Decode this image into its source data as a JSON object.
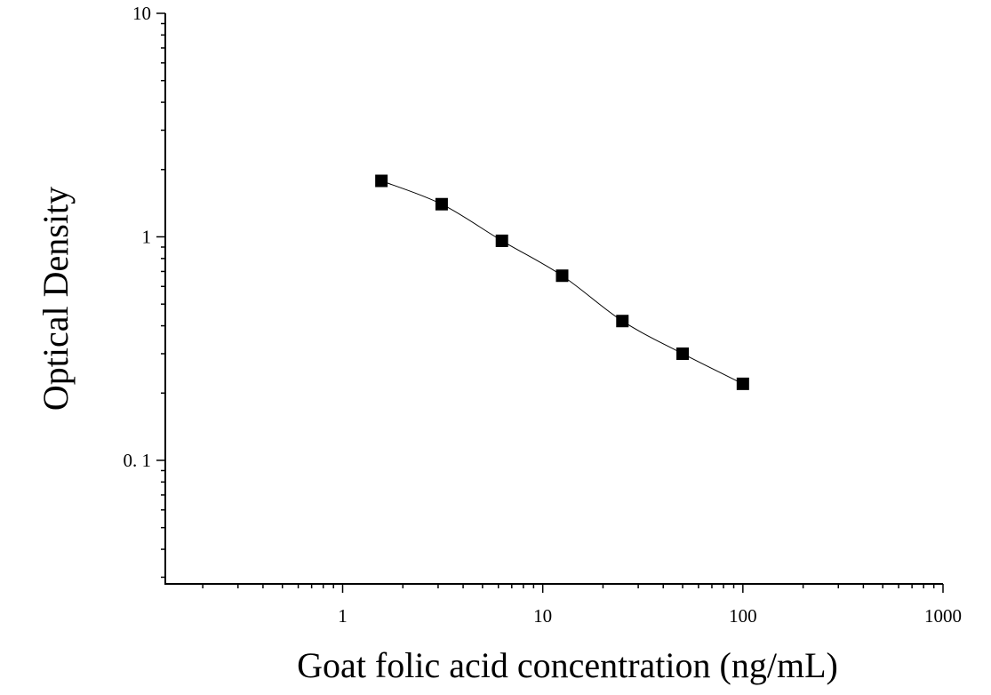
{
  "chart_data": {
    "type": "scatter",
    "title": "",
    "xlabel": "Goat folic acid concentration (ng/mL)",
    "ylabel": "Optical Density",
    "x_scale": "log",
    "y_scale": "log",
    "xlim": [
      0.13,
      1000
    ],
    "ylim": [
      0.028,
      10
    ],
    "x_ticks": [
      {
        "value": 1,
        "label": "1"
      },
      {
        "value": 10,
        "label": "10"
      },
      {
        "value": 100,
        "label": "100"
      },
      {
        "value": 1000,
        "label": "1000"
      }
    ],
    "y_ticks": [
      {
        "value": 10,
        "label": "10"
      },
      {
        "value": 1,
        "label": "1"
      },
      {
        "value": 0.1,
        "label": "0. 1"
      }
    ],
    "grid": false,
    "legend": "none",
    "series": [
      {
        "marker": "square",
        "color": "#000000",
        "fit_curve": true,
        "points": [
          {
            "x": 1.5625,
            "y": 1.78
          },
          {
            "x": 3.125,
            "y": 1.4
          },
          {
            "x": 6.25,
            "y": 0.96
          },
          {
            "x": 12.5,
            "y": 0.67
          },
          {
            "x": 25,
            "y": 0.42
          },
          {
            "x": 50,
            "y": 0.3
          },
          {
            "x": 100,
            "y": 0.22
          }
        ]
      }
    ]
  }
}
